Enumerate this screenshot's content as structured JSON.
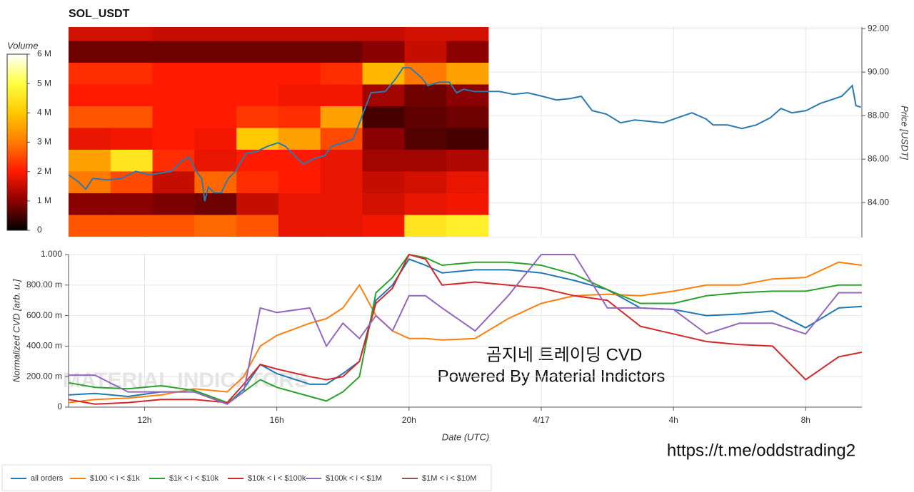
{
  "chart_data": [
    {
      "type": "heatmap",
      "title": "SOL_USDT",
      "xlim": [
        9.7,
        33.7
      ],
      "x_bins": [
        9.7,
        10.97,
        12.24,
        13.51,
        14.78,
        16.05,
        17.32,
        18.59,
        19.86,
        21.13,
        22.4
      ],
      "y_bins": [
        82.45,
        83.45,
        84.45,
        85.45,
        86.45,
        87.45,
        88.45,
        89.45,
        90.45,
        91.45,
        92.07
      ],
      "values": [
        [
          2.6,
          2.6,
          2.6,
          2.8,
          2.6,
          1.8,
          1.8,
          1.9,
          4.5,
          4.7
        ],
        [
          1.0,
          1.0,
          0.9,
          0.8,
          1.5,
          1.8,
          1.8,
          1.6,
          1.8,
          1.9
        ],
        [
          3.0,
          2.5,
          1.5,
          2.8,
          2.2,
          2.0,
          1.8,
          1.5,
          1.6,
          1.8
        ],
        [
          3.5,
          4.5,
          2.2,
          1.8,
          2.0,
          2.0,
          1.8,
          1.2,
          1.2,
          1.3
        ],
        [
          1.8,
          1.9,
          2.0,
          1.9,
          4.0,
          3.5,
          2.5,
          1.0,
          0.6,
          0.5
        ],
        [
          2.6,
          2.6,
          2.0,
          2.0,
          2.3,
          2.2,
          3.5,
          0.5,
          0.7,
          0.8
        ],
        [
          2.0,
          2.0,
          2.0,
          2.0,
          2.0,
          1.9,
          1.9,
          1.2,
          0.8,
          1.0
        ],
        [
          2.2,
          2.2,
          2.0,
          2.0,
          2.0,
          2.0,
          2.2,
          3.8,
          3.0,
          3.5
        ],
        [
          0.8,
          0.8,
          0.8,
          0.8,
          0.8,
          0.8,
          0.8,
          1.0,
          1.5,
          1.0
        ],
        [
          1.6,
          1.6,
          1.5,
          1.5,
          1.5,
          1.5,
          1.5,
          1.5,
          1.6,
          1.6
        ]
      ],
      "colorbar": {
        "label": "Volume",
        "zlim": [
          0,
          6
        ],
        "ticks": [
          0,
          {
            "value": 1,
            "label": "1 M"
          },
          {
            "value": 2,
            "label": "2 M"
          },
          {
            "value": 3,
            "label": "3 M"
          },
          {
            "value": 4,
            "label": "4 M"
          },
          {
            "value": 5,
            "label": "5 M"
          },
          {
            "value": 6,
            "label": "6 M"
          }
        ]
      },
      "y2label": "Price [USDT]",
      "ylim": [
        82.4,
        92.07
      ],
      "yticks": [
        {
          "value": 84,
          "label": "84.00"
        },
        {
          "value": 86,
          "label": "86.00"
        },
        {
          "value": 88,
          "label": "88.00"
        },
        {
          "value": 90,
          "label": "90.00"
        },
        {
          "value": 92,
          "label": "92.00"
        }
      ],
      "price": {
        "color": "#2a7ab0",
        "x": [
          9.7,
          10.0,
          10.22,
          10.43,
          10.87,
          11.3,
          11.73,
          12.16,
          12.81,
          13.13,
          13.35,
          13.56,
          13.73,
          13.82,
          13.93,
          14.1,
          14.32,
          14.53,
          14.75,
          15.07,
          15.4,
          15.72,
          16.04,
          16.26,
          16.47,
          16.8,
          17.12,
          17.45,
          17.66,
          17.98,
          18.31,
          18.52,
          18.68,
          18.85,
          19.28,
          19.6,
          19.82,
          20.03,
          20.36,
          20.57,
          20.9,
          21.22,
          21.44,
          21.65,
          21.98,
          22.39,
          22.73,
          23.16,
          23.59,
          24.03,
          24.46,
          24.89,
          25.21,
          25.54,
          25.97,
          26.4,
          26.83,
          27.26,
          27.69,
          28.12,
          28.56,
          28.99,
          29.2,
          29.64,
          30.07,
          30.5,
          30.93,
          31.25,
          31.58,
          32.01,
          32.44,
          32.76,
          33.09,
          33.41,
          33.52,
          33.67
        ],
        "values": [
          85.28,
          84.95,
          84.62,
          85.11,
          85.05,
          85.11,
          85.44,
          85.28,
          85.44,
          85.93,
          86.1,
          85.44,
          85.11,
          84.07,
          84.72,
          84.46,
          84.46,
          85.11,
          85.44,
          86.26,
          86.36,
          86.59,
          86.75,
          86.59,
          86.26,
          85.77,
          86.03,
          86.16,
          86.59,
          86.75,
          86.92,
          87.74,
          88.39,
          89.05,
          89.11,
          89.7,
          90.2,
          90.2,
          89.77,
          89.38,
          89.54,
          89.54,
          89.05,
          89.21,
          89.11,
          89.11,
          89.11,
          88.98,
          89.05,
          88.89,
          88.72,
          88.79,
          88.89,
          88.23,
          88.07,
          87.67,
          87.8,
          87.74,
          87.67,
          87.9,
          88.13,
          87.84,
          87.57,
          87.57,
          87.41,
          87.57,
          87.9,
          88.33,
          88.13,
          88.23,
          88.56,
          88.72,
          88.89,
          89.38,
          88.46,
          88.39
        ]
      }
    },
    {
      "type": "line",
      "xlabel": "Date (UTC)",
      "ylabel": "Normalized CVD [arb. u.]",
      "xlim": [
        9.7,
        33.7
      ],
      "xticks": [
        {
          "value": 12,
          "label": "12h"
        },
        {
          "value": 16,
          "label": "16h"
        },
        {
          "value": 20,
          "label": "20h"
        },
        {
          "value": 24,
          "label": "4/17"
        },
        {
          "value": 28,
          "label": "4h"
        },
        {
          "value": 32,
          "label": "8h"
        }
      ],
      "ylim": [
        0,
        1
      ],
      "yticks": [
        0,
        {
          "value": 0.2,
          "label": "200.00 m"
        },
        {
          "value": 0.4,
          "label": "400.00 m"
        },
        {
          "value": 0.6,
          "label": "600.00 m"
        },
        {
          "value": 0.8,
          "label": "800.00 m"
        },
        {
          "value": 1,
          "label": "1.000"
        }
      ],
      "grid": true,
      "x": [
        9.7,
        10.5,
        11.5,
        12.5,
        13.5,
        14.5,
        15,
        15.5,
        16,
        17,
        17.5,
        18,
        18.5,
        19,
        19.5,
        20,
        20.5,
        21,
        22,
        23,
        24,
        25,
        26,
        27,
        28,
        29,
        30,
        31,
        32,
        33,
        33.7
      ],
      "series": [
        {
          "name": "all orders",
          "color": "#1f77b4",
          "values": [
            0.08,
            0.09,
            0.07,
            0.1,
            0.1,
            0.02,
            0.12,
            0.28,
            0.22,
            0.15,
            0.15,
            0.22,
            0.3,
            0.7,
            0.8,
            0.97,
            0.93,
            0.88,
            0.9,
            0.9,
            0.88,
            0.83,
            0.77,
            0.65,
            0.64,
            0.6,
            0.61,
            0.63,
            0.52,
            0.65,
            0.66
          ]
        },
        {
          "name": "$100 < i < $1k",
          "color": "#ff7f0e",
          "values": [
            0.03,
            0.05,
            0.06,
            0.08,
            0.12,
            0.1,
            0.2,
            0.4,
            0.47,
            0.55,
            0.58,
            0.65,
            0.8,
            0.6,
            0.5,
            0.45,
            0.45,
            0.44,
            0.45,
            0.58,
            0.68,
            0.73,
            0.74,
            0.73,
            0.76,
            0.8,
            0.8,
            0.84,
            0.85,
            0.95,
            0.93
          ]
        },
        {
          "name": "$1k < i < $10k",
          "color": "#2ca02c",
          "values": [
            0.16,
            0.13,
            0.12,
            0.14,
            0.11,
            0.03,
            0.1,
            0.18,
            0.13,
            0.07,
            0.04,
            0.1,
            0.2,
            0.75,
            0.85,
            1.0,
            0.98,
            0.93,
            0.95,
            0.95,
            0.93,
            0.87,
            0.77,
            0.68,
            0.68,
            0.73,
            0.75,
            0.76,
            0.76,
            0.8,
            0.8
          ]
        },
        {
          "name": "$10k < i < $100k",
          "color": "#d62728",
          "values": [
            0.05,
            0.02,
            0.03,
            0.05,
            0.05,
            0.03,
            0.15,
            0.28,
            0.25,
            0.2,
            0.18,
            0.2,
            0.3,
            0.68,
            0.78,
            1.0,
            0.97,
            0.8,
            0.82,
            0.8,
            0.78,
            0.73,
            0.7,
            0.53,
            0.48,
            0.43,
            0.41,
            0.4,
            0.18,
            0.33,
            0.36
          ]
        },
        {
          "name": "$100k < i < $1M",
          "color": "#9467bd",
          "values": [
            0.21,
            0.21,
            0.1,
            0.1,
            0.1,
            0.02,
            0.1,
            0.65,
            0.62,
            0.65,
            0.4,
            0.55,
            0.45,
            0.6,
            0.5,
            0.73,
            0.73,
            0.65,
            0.5,
            0.73,
            1.0,
            1.0,
            0.65,
            0.65,
            0.64,
            0.48,
            0.55,
            0.55,
            0.48,
            0.75,
            0.75
          ]
        },
        {
          "name": "$1M < i < $10M",
          "color": "#8c564b",
          "values": [
            null,
            null,
            null,
            null,
            null,
            null,
            null,
            null,
            null,
            null,
            null,
            null,
            null,
            null,
            null,
            null,
            null,
            null,
            null,
            null,
            null,
            null,
            null,
            null,
            null,
            null,
            null,
            null,
            null,
            null,
            null
          ]
        }
      ]
    }
  ],
  "watermark": "MATERIAL INDICATORS",
  "caption": [
    "곰지네 트레이딩 CVD",
    "Powered By Material Indictors"
  ],
  "link": "https://t.me/oddstrading2"
}
